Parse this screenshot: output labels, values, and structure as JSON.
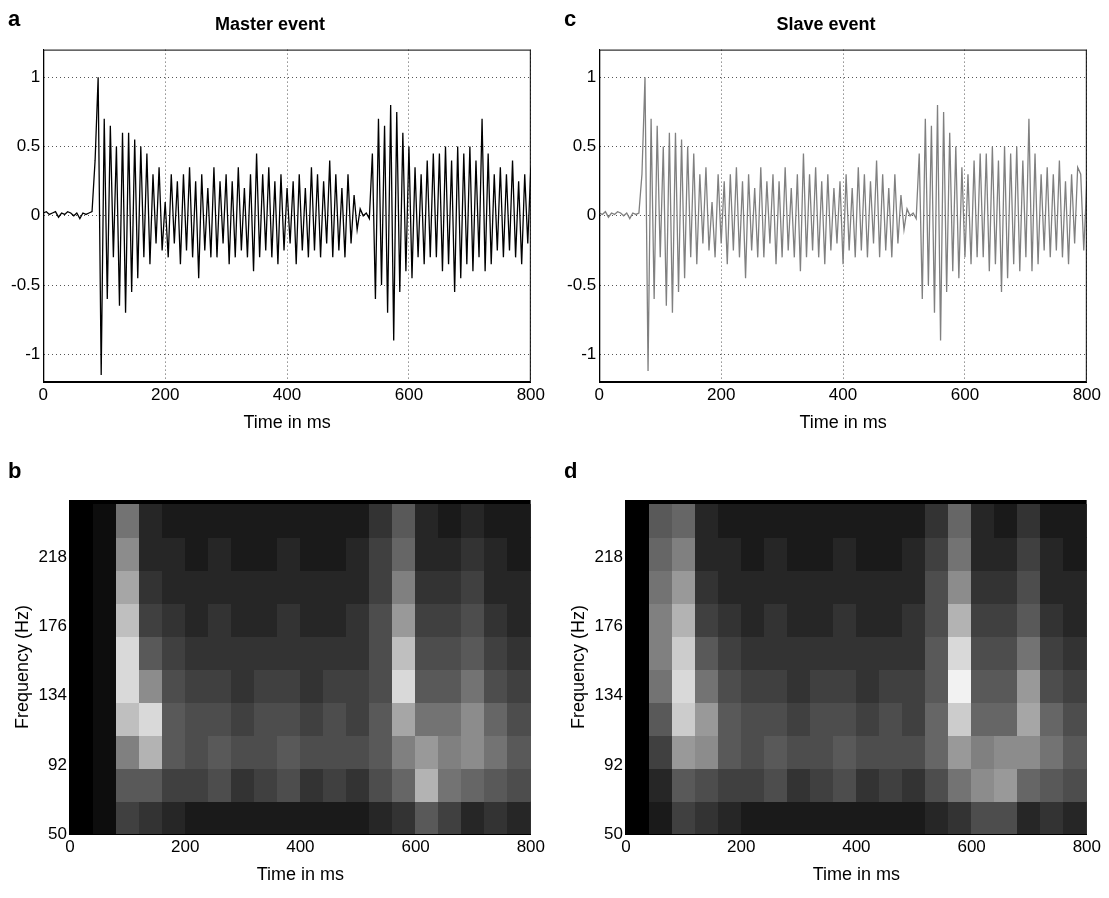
{
  "chart_data": [
    {
      "panel": "a",
      "type": "line",
      "title": "Master event",
      "x_label": "Time in ms",
      "x": [
        0,
        5,
        10,
        15,
        20,
        25,
        30,
        35,
        40,
        45,
        50,
        55,
        60,
        65,
        70,
        75,
        80,
        85,
        90,
        95,
        100,
        105,
        110,
        115,
        120,
        125,
        130,
        135,
        140,
        145,
        150,
        155,
        160,
        165,
        170,
        175,
        180,
        185,
        190,
        195,
        200,
        205,
        210,
        215,
        220,
        225,
        230,
        235,
        240,
        245,
        250,
        255,
        260,
        265,
        270,
        275,
        280,
        285,
        290,
        295,
        300,
        305,
        310,
        315,
        320,
        325,
        330,
        335,
        340,
        345,
        350,
        355,
        360,
        365,
        370,
        375,
        380,
        385,
        390,
        395,
        400,
        405,
        410,
        415,
        420,
        425,
        430,
        435,
        440,
        445,
        450,
        455,
        460,
        465,
        470,
        475,
        480,
        485,
        490,
        495,
        500,
        505,
        510,
        515,
        520,
        525,
        530,
        535,
        540,
        545,
        550,
        555,
        560,
        565,
        570,
        575,
        580,
        585,
        590,
        595,
        600,
        605,
        610,
        615,
        620,
        625,
        630,
        635,
        640,
        645,
        650,
        655,
        660,
        665,
        670,
        675,
        680,
        685,
        690,
        695,
        700,
        705,
        710,
        715,
        720,
        725,
        730,
        735,
        740,
        745,
        750,
        755,
        760,
        765,
        770,
        775,
        780,
        785,
        790,
        795,
        800
      ],
      "values": [
        0.02,
        0.03,
        0.01,
        0.02,
        0.03,
        -0.01,
        0.02,
        0.01,
        0.03,
        0.02,
        0.0,
        0.02,
        -0.02,
        0.02,
        0.01,
        0.02,
        0.03,
        0.4,
        1.0,
        -1.15,
        0.7,
        -0.6,
        0.65,
        -0.3,
        0.5,
        -0.65,
        0.6,
        -0.7,
        0.6,
        -0.55,
        0.55,
        -0.45,
        0.5,
        -0.3,
        0.45,
        -0.35,
        0.3,
        -0.2,
        0.35,
        -0.25,
        0.1,
        -0.3,
        0.3,
        -0.2,
        0.25,
        -0.35,
        0.3,
        -0.25,
        0.35,
        -0.3,
        0.25,
        -0.45,
        0.3,
        -0.25,
        0.2,
        -0.3,
        0.35,
        -0.3,
        0.25,
        -0.2,
        0.3,
        -0.35,
        0.25,
        -0.3,
        0.35,
        -0.25,
        0.2,
        -0.3,
        0.3,
        -0.4,
        0.45,
        -0.3,
        0.3,
        -0.25,
        0.35,
        -0.3,
        0.25,
        -0.35,
        0.3,
        -0.25,
        0.2,
        -0.2,
        0.25,
        -0.35,
        0.3,
        -0.25,
        0.2,
        -0.3,
        0.35,
        -0.25,
        0.3,
        -0.3,
        0.25,
        -0.2,
        0.4,
        -0.3,
        0.3,
        -0.25,
        0.2,
        -0.3,
        0.3,
        -0.2,
        0.15,
        -0.1,
        0.05,
        0.0,
        0.02,
        -0.02,
        0.45,
        -0.6,
        0.7,
        -0.5,
        0.65,
        -0.7,
        0.8,
        -0.9,
        0.75,
        -0.55,
        0.6,
        -0.4,
        0.5,
        -0.45,
        0.35,
        -0.3,
        0.3,
        -0.35,
        0.4,
        -0.3,
        0.45,
        -0.3,
        0.45,
        -0.4,
        0.5,
        -0.35,
        0.4,
        -0.55,
        0.5,
        -0.45,
        0.45,
        -0.35,
        0.5,
        -0.4,
        0.4,
        -0.3,
        0.7,
        -0.4,
        0.45,
        -0.35,
        0.3,
        -0.25,
        0.35,
        -0.3,
        0.3,
        -0.25,
        0.4,
        -0.3,
        0.25,
        -0.35,
        0.3,
        -0.2,
        0.35
      ],
      "color": "#000000",
      "xlim": [
        0,
        800
      ],
      "xticks": [
        0,
        200,
        400,
        600,
        800
      ],
      "ylim": [
        -1.2,
        1.2
      ],
      "yticks": [
        -1,
        -0.5,
        0,
        0.5,
        1
      ],
      "grid": true
    },
    {
      "panel": "b",
      "type": "heatmap",
      "x_label": "Time in ms",
      "y_label": "Frequency (Hz)",
      "x": [
        20,
        60,
        100,
        140,
        180,
        220,
        260,
        300,
        340,
        380,
        420,
        460,
        500,
        540,
        580,
        620,
        660,
        700,
        740,
        780
      ],
      "y": [
        60,
        80,
        100,
        120,
        140,
        160,
        180,
        200,
        220,
        240
      ],
      "cells": [
        [
          0,
          0.05,
          0.25,
          0.2,
          0.15,
          0.1,
          0.1,
          0.1,
          0.1,
          0.1,
          0.1,
          0.1,
          0.1,
          0.15,
          0.2,
          0.35,
          0.25,
          0.15,
          0.2,
          0.15
        ],
        [
          0,
          0.05,
          0.35,
          0.35,
          0.25,
          0.25,
          0.3,
          0.2,
          0.25,
          0.3,
          0.2,
          0.25,
          0.2,
          0.3,
          0.4,
          0.7,
          0.45,
          0.4,
          0.35,
          0.3
        ],
        [
          0,
          0.05,
          0.5,
          0.7,
          0.35,
          0.3,
          0.35,
          0.3,
          0.3,
          0.35,
          0.3,
          0.3,
          0.3,
          0.35,
          0.5,
          0.6,
          0.5,
          0.55,
          0.45,
          0.35
        ],
        [
          0,
          0.05,
          0.75,
          0.85,
          0.35,
          0.3,
          0.3,
          0.25,
          0.3,
          0.3,
          0.25,
          0.3,
          0.25,
          0.35,
          0.65,
          0.45,
          0.45,
          0.55,
          0.4,
          0.3
        ],
        [
          0,
          0.05,
          0.85,
          0.55,
          0.3,
          0.25,
          0.25,
          0.2,
          0.25,
          0.25,
          0.2,
          0.25,
          0.25,
          0.3,
          0.85,
          0.35,
          0.35,
          0.45,
          0.3,
          0.25
        ],
        [
          0,
          0.05,
          0.85,
          0.35,
          0.25,
          0.2,
          0.2,
          0.2,
          0.2,
          0.2,
          0.2,
          0.2,
          0.2,
          0.3,
          0.75,
          0.3,
          0.3,
          0.35,
          0.25,
          0.2
        ],
        [
          0,
          0.05,
          0.75,
          0.25,
          0.2,
          0.15,
          0.2,
          0.15,
          0.15,
          0.2,
          0.15,
          0.15,
          0.2,
          0.3,
          0.6,
          0.25,
          0.25,
          0.3,
          0.2,
          0.15
        ],
        [
          0,
          0.05,
          0.65,
          0.2,
          0.15,
          0.15,
          0.15,
          0.15,
          0.15,
          0.15,
          0.15,
          0.15,
          0.15,
          0.25,
          0.5,
          0.2,
          0.2,
          0.25,
          0.15,
          0.15
        ],
        [
          0,
          0.05,
          0.55,
          0.15,
          0.15,
          0.1,
          0.15,
          0.1,
          0.1,
          0.15,
          0.1,
          0.1,
          0.15,
          0.25,
          0.4,
          0.15,
          0.15,
          0.2,
          0.15,
          0.1
        ],
        [
          0,
          0.05,
          0.45,
          0.15,
          0.1,
          0.1,
          0.1,
          0.1,
          0.1,
          0.1,
          0.1,
          0.1,
          0.1,
          0.2,
          0.35,
          0.15,
          0.1,
          0.15,
          0.1,
          0.1
        ]
      ],
      "xlim": [
        0,
        800
      ],
      "xticks": [
        0,
        200,
        400,
        600,
        800
      ],
      "ylim": [
        50,
        253
      ],
      "yticks": [
        50,
        92,
        134,
        176,
        218
      ]
    },
    {
      "panel": "c",
      "type": "line",
      "title": "Slave event",
      "x_label": "Time in ms",
      "x": [
        0,
        5,
        10,
        15,
        20,
        25,
        30,
        35,
        40,
        45,
        50,
        55,
        60,
        65,
        70,
        75,
        80,
        85,
        90,
        95,
        100,
        105,
        110,
        115,
        120,
        125,
        130,
        135,
        140,
        145,
        150,
        155,
        160,
        165,
        170,
        175,
        180,
        185,
        190,
        195,
        200,
        205,
        210,
        215,
        220,
        225,
        230,
        235,
        240,
        245,
        250,
        255,
        260,
        265,
        270,
        275,
        280,
        285,
        290,
        295,
        300,
        305,
        310,
        315,
        320,
        325,
        330,
        335,
        340,
        345,
        350,
        355,
        360,
        365,
        370,
        375,
        380,
        385,
        390,
        395,
        400,
        405,
        410,
        415,
        420,
        425,
        430,
        435,
        440,
        445,
        450,
        455,
        460,
        465,
        470,
        475,
        480,
        485,
        490,
        495,
        500,
        505,
        510,
        515,
        520,
        525,
        530,
        535,
        540,
        545,
        550,
        555,
        560,
        565,
        570,
        575,
        580,
        585,
        590,
        595,
        600,
        605,
        610,
        615,
        620,
        625,
        630,
        635,
        640,
        645,
        650,
        655,
        660,
        665,
        670,
        675,
        680,
        685,
        690,
        695,
        700,
        705,
        710,
        715,
        720,
        725,
        730,
        735,
        740,
        745,
        750,
        755,
        760,
        765,
        770,
        775,
        780,
        785,
        790,
        795,
        800
      ],
      "values": [
        0.02,
        0.01,
        0.03,
        -0.01,
        0.02,
        0.01,
        0.03,
        0.02,
        0.0,
        0.02,
        -0.02,
        0.02,
        0.01,
        0.02,
        0.3,
        1.0,
        -1.12,
        0.7,
        -0.6,
        0.65,
        -0.3,
        0.5,
        -0.65,
        0.6,
        -0.7,
        0.6,
        -0.55,
        0.55,
        -0.45,
        0.5,
        -0.3,
        0.45,
        -0.35,
        0.3,
        -0.2,
        0.35,
        -0.25,
        0.1,
        -0.3,
        0.3,
        -0.2,
        0.25,
        -0.35,
        0.3,
        -0.25,
        0.35,
        -0.3,
        0.25,
        -0.45,
        0.3,
        -0.25,
        0.2,
        -0.3,
        0.35,
        -0.3,
        0.25,
        -0.2,
        0.3,
        -0.35,
        0.25,
        -0.3,
        0.35,
        -0.25,
        0.2,
        -0.3,
        0.3,
        -0.4,
        0.45,
        -0.3,
        0.3,
        -0.25,
        0.35,
        -0.3,
        0.25,
        -0.35,
        0.3,
        -0.25,
        0.2,
        -0.2,
        0.25,
        -0.35,
        0.3,
        -0.25,
        0.2,
        -0.3,
        0.35,
        -0.25,
        0.3,
        -0.3,
        0.25,
        -0.2,
        0.4,
        -0.3,
        0.3,
        -0.25,
        0.2,
        -0.3,
        0.3,
        -0.2,
        0.15,
        -0.1,
        0.05,
        0.0,
        0.02,
        -0.02,
        0.45,
        -0.6,
        0.7,
        -0.5,
        0.65,
        -0.7,
        0.8,
        -0.9,
        0.75,
        -0.55,
        0.6,
        -0.4,
        0.5,
        -0.45,
        0.35,
        -0.3,
        0.3,
        -0.35,
        0.4,
        -0.3,
        0.45,
        -0.3,
        0.45,
        -0.4,
        0.5,
        -0.35,
        0.4,
        -0.55,
        0.5,
        -0.45,
        0.45,
        -0.35,
        0.5,
        -0.4,
        0.4,
        -0.3,
        0.7,
        -0.4,
        0.45,
        -0.35,
        0.3,
        -0.25,
        0.35,
        -0.3,
        0.3,
        -0.25,
        0.4,
        -0.3,
        0.25,
        -0.35,
        0.3,
        -0.2,
        0.35,
        0.3,
        -0.25,
        0.25
      ],
      "color": "#808080",
      "xlim": [
        0,
        800
      ],
      "xticks": [
        0,
        200,
        400,
        600,
        800
      ],
      "ylim": [
        -1.2,
        1.2
      ],
      "yticks": [
        -1,
        -0.5,
        0,
        0.5,
        1
      ],
      "grid": true
    },
    {
      "panel": "d",
      "type": "heatmap",
      "x_label": "Time in ms",
      "y_label": "Frequency (Hz)",
      "x": [
        20,
        60,
        100,
        140,
        180,
        220,
        260,
        300,
        340,
        380,
        420,
        460,
        500,
        540,
        580,
        620,
        660,
        700,
        740,
        780
      ],
      "y": [
        60,
        80,
        100,
        120,
        140,
        160,
        180,
        200,
        220,
        240
      ],
      "cells": [
        [
          0,
          0.1,
          0.25,
          0.2,
          0.15,
          0.1,
          0.1,
          0.1,
          0.1,
          0.1,
          0.1,
          0.1,
          0.1,
          0.15,
          0.2,
          0.3,
          0.3,
          0.15,
          0.2,
          0.15
        ],
        [
          0,
          0.15,
          0.35,
          0.3,
          0.25,
          0.25,
          0.3,
          0.2,
          0.25,
          0.3,
          0.2,
          0.25,
          0.2,
          0.3,
          0.45,
          0.55,
          0.6,
          0.4,
          0.35,
          0.3
        ],
        [
          0,
          0.25,
          0.6,
          0.55,
          0.35,
          0.3,
          0.35,
          0.3,
          0.3,
          0.35,
          0.3,
          0.3,
          0.3,
          0.4,
          0.6,
          0.5,
          0.55,
          0.55,
          0.45,
          0.35
        ],
        [
          0,
          0.35,
          0.8,
          0.6,
          0.35,
          0.3,
          0.3,
          0.25,
          0.3,
          0.3,
          0.25,
          0.3,
          0.25,
          0.4,
          0.8,
          0.4,
          0.4,
          0.65,
          0.4,
          0.3
        ],
        [
          0,
          0.45,
          0.85,
          0.45,
          0.3,
          0.25,
          0.25,
          0.2,
          0.25,
          0.25,
          0.2,
          0.25,
          0.25,
          0.35,
          0.95,
          0.35,
          0.35,
          0.6,
          0.3,
          0.25
        ],
        [
          0,
          0.5,
          0.8,
          0.35,
          0.25,
          0.2,
          0.2,
          0.2,
          0.2,
          0.2,
          0.2,
          0.2,
          0.2,
          0.35,
          0.85,
          0.3,
          0.3,
          0.45,
          0.25,
          0.2
        ],
        [
          0,
          0.5,
          0.7,
          0.25,
          0.2,
          0.15,
          0.2,
          0.15,
          0.15,
          0.2,
          0.15,
          0.15,
          0.2,
          0.3,
          0.7,
          0.25,
          0.25,
          0.35,
          0.2,
          0.15
        ],
        [
          0,
          0.45,
          0.6,
          0.2,
          0.15,
          0.15,
          0.15,
          0.15,
          0.15,
          0.15,
          0.15,
          0.15,
          0.15,
          0.3,
          0.55,
          0.2,
          0.2,
          0.3,
          0.15,
          0.15
        ],
        [
          0,
          0.4,
          0.5,
          0.15,
          0.15,
          0.1,
          0.15,
          0.1,
          0.1,
          0.15,
          0.1,
          0.1,
          0.15,
          0.25,
          0.45,
          0.15,
          0.15,
          0.25,
          0.15,
          0.1
        ],
        [
          0,
          0.35,
          0.4,
          0.15,
          0.1,
          0.1,
          0.1,
          0.1,
          0.1,
          0.1,
          0.1,
          0.1,
          0.1,
          0.2,
          0.4,
          0.15,
          0.1,
          0.2,
          0.1,
          0.1
        ]
      ],
      "xlim": [
        0,
        800
      ],
      "xticks": [
        0,
        200,
        400,
        600,
        800
      ],
      "ylim": [
        50,
        253
      ],
      "yticks": [
        50,
        92,
        134,
        176,
        218
      ]
    }
  ]
}
